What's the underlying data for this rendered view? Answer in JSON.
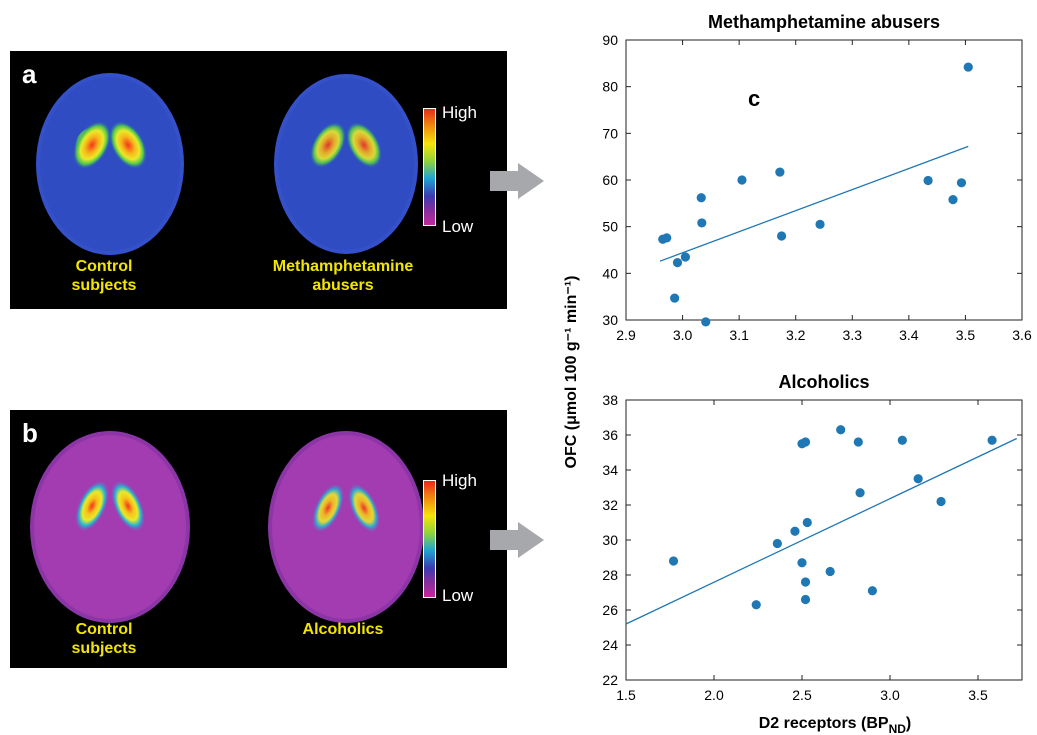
{
  "panel_a": {
    "letter": "a",
    "left_label": "Control\nsubjects",
    "right_label": "Methamphetamine\nabusers",
    "scale_high": "High",
    "scale_low": "Low"
  },
  "panel_b": {
    "letter": "b",
    "left_label": "Control\nsubjects",
    "right_label": "Alcoholics",
    "scale_high": "High",
    "scale_low": "Low"
  },
  "panel_c_letter": "c",
  "shared_ylabel": "OFC (μmol 100 g⁻¹ min⁻¹)",
  "shared_xlabel_main": "D2 receptors (BP",
  "shared_xlabel_sub": "ND",
  "shared_xlabel_end": ")",
  "colors": {
    "marker": "#1f77b4",
    "fit_line": "#1f77b4",
    "label_yellow": "#f2e600"
  },
  "chart_data": [
    {
      "type": "scatter",
      "title": "Methamphetamine abusers",
      "xlim": [
        2.9,
        3.6
      ],
      "ylim": [
        30,
        90
      ],
      "xticks": [
        "2.9",
        "3.0",
        "3.1",
        "3.2",
        "3.3",
        "3.4",
        "3.5",
        "3.6"
      ],
      "yticks": [
        "30",
        "40",
        "50",
        "60",
        "70",
        "80",
        "90"
      ],
      "points": [
        [
          2.965,
          47.3
        ],
        [
          2.972,
          47.6
        ],
        [
          2.986,
          34.7
        ],
        [
          2.991,
          42.3
        ],
        [
          3.005,
          43.5
        ],
        [
          3.033,
          56.2
        ],
        [
          3.034,
          50.8
        ],
        [
          3.041,
          29.6
        ],
        [
          3.105,
          60.0
        ],
        [
          3.172,
          61.7
        ],
        [
          3.175,
          48.0
        ],
        [
          3.243,
          50.5
        ],
        [
          3.434,
          59.9
        ],
        [
          3.478,
          55.8
        ],
        [
          3.493,
          59.4
        ],
        [
          3.505,
          84.2
        ]
      ],
      "fit": [
        [
          2.96,
          42.6
        ],
        [
          3.505,
          67.2
        ]
      ]
    },
    {
      "type": "scatter",
      "title": "Alcoholics",
      "xlim": [
        1.5,
        3.75
      ],
      "ylim": [
        22,
        38
      ],
      "xticks": [
        "1.5",
        "2.0",
        "2.5",
        "3.0",
        "3.5"
      ],
      "yticks": [
        "22",
        "24",
        "26",
        "28",
        "30",
        "32",
        "34",
        "36",
        "38"
      ],
      "points": [
        [
          1.77,
          28.8
        ],
        [
          2.24,
          26.3
        ],
        [
          2.36,
          29.8
        ],
        [
          2.46,
          30.5
        ],
        [
          2.5,
          35.5
        ],
        [
          2.52,
          35.6
        ],
        [
          2.5,
          28.7
        ],
        [
          2.52,
          27.6
        ],
        [
          2.52,
          26.6
        ],
        [
          2.53,
          31.0
        ],
        [
          2.66,
          28.2
        ],
        [
          2.72,
          36.3
        ],
        [
          2.82,
          35.6
        ],
        [
          2.83,
          32.7
        ],
        [
          2.9,
          27.1
        ],
        [
          3.07,
          35.7
        ],
        [
          3.16,
          33.5
        ],
        [
          3.29,
          32.2
        ],
        [
          3.58,
          35.7
        ]
      ],
      "fit": [
        [
          1.5,
          25.2
        ],
        [
          3.72,
          35.8
        ]
      ]
    }
  ]
}
